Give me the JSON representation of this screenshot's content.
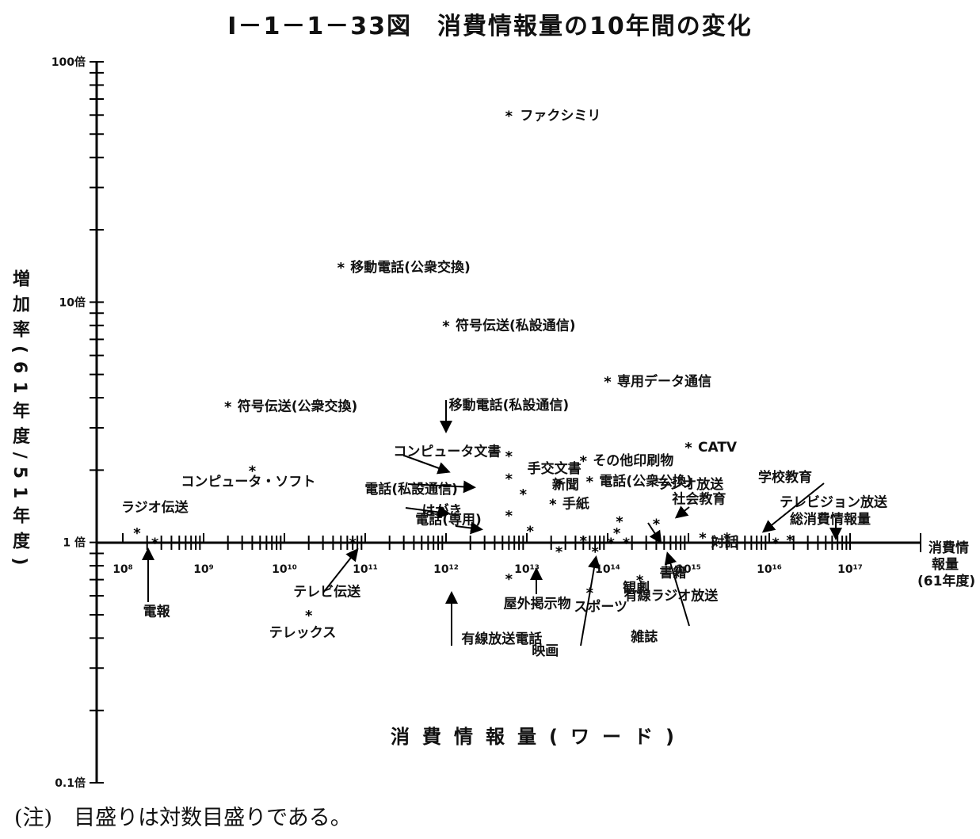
{
  "figure": {
    "title": "Ⅰ－1－1－33図　消費情報量の10年間の変化",
    "y_axis_label": "増加率(61年度/51年度)",
    "x_axis_label": "消費情報量(ワード)",
    "x_end_label_1": "消費情",
    "x_end_label_2": "報量",
    "x_end_label_3": "(61年度)",
    "note": "(注)　目盛りは対数目盛りである。"
  },
  "chart_data": {
    "type": "scatter",
    "x_scale": "log",
    "y_scale": "log",
    "xlim": [
      100000000,
      100000000000000000
    ],
    "ylim": [
      0.1,
      100
    ],
    "y_tick_labels": [
      {
        "value": 100,
        "label": "100倍"
      },
      {
        "value": 10,
        "label": "10倍"
      },
      {
        "value": 1,
        "label": "1 倍"
      },
      {
        "value": 0.1,
        "label": "0.1倍"
      }
    ],
    "x_tick_labels": [
      {
        "exp": 8,
        "label": "10⁸"
      },
      {
        "exp": 9,
        "label": "10⁹"
      },
      {
        "exp": 10,
        "label": "10¹⁰"
      },
      {
        "exp": 11,
        "label": "10¹¹"
      },
      {
        "exp": 12,
        "label": "10¹²"
      },
      {
        "exp": 13,
        "label": "10¹³"
      },
      {
        "exp": 14,
        "label": "10¹⁴"
      },
      {
        "exp": 15,
        "label": "10¹⁵"
      },
      {
        "exp": 16,
        "label": "10¹⁶"
      },
      {
        "exp": 17,
        "label": "10¹⁷"
      }
    ],
    "points": [
      {
        "name": "ファクシミリ",
        "x": 6000000000000,
        "y": 60
      },
      {
        "name": "移動電話(公衆交換)",
        "x": 50000000000,
        "y": 14
      },
      {
        "name": "符号伝送(私設通信)",
        "x": 1000000000000,
        "y": 8
      },
      {
        "name": "専用データ通信",
        "x": 100000000000000,
        "y": 4.7
      },
      {
        "name": "符号伝送(公衆交換)",
        "x": 2000000000,
        "y": 3.7
      },
      {
        "name": "移動電話(私設通信)",
        "x": 6000000000000,
        "y": 2.3
      },
      {
        "name": "CATV",
        "x": 1000000000000000,
        "y": 2.5
      },
      {
        "name": "コンピュータ文書",
        "x": 6000000000000,
        "y": 1.85
      },
      {
        "name": "コンピュータ・ソフト",
        "x": 4000000000,
        "y": 2.0
      },
      {
        "name": "その他印刷物",
        "x": 50000000000000,
        "y": 2.2
      },
      {
        "name": "手交文書",
        "x": 25000000000000,
        "y": 1.75
      },
      {
        "name": "電話(公衆公換)",
        "x": 60000000000000,
        "y": 1.8
      },
      {
        "name": "電話(私設通信)",
        "x": 9000000000000,
        "y": 1.6
      },
      {
        "name": "手紙",
        "x": 21000000000000,
        "y": 1.45
      },
      {
        "name": "はがき",
        "x": 6000000000000,
        "y": 1.3
      },
      {
        "name": "ラジオ伝送",
        "x": 150000000,
        "y": 1.1
      },
      {
        "name": "電話(専用)",
        "x": 11000000000000,
        "y": 1.12
      },
      {
        "name": "新聞",
        "x": 140000000000000,
        "y": 1.23
      },
      {
        "name": "ラジオ放送",
        "x": 130000000000000,
        "y": 1.1
      },
      {
        "name": "社会教育",
        "x": 400000000000000,
        "y": 1.2
      },
      {
        "name": "学校教育",
        "x": 1500000000000000,
        "y": 1.05
      },
      {
        "name": "テレビジョン放送",
        "x": 12000000000000000,
        "y": 1.0
      },
      {
        "name": "総消費情報量",
        "x": 18000000000000000,
        "y": 1.03
      },
      {
        "name": "対話",
        "x": 3000000000000000,
        "y": 1.05
      },
      {
        "name": "電報",
        "x": 250000000,
        "y": 1.0
      },
      {
        "name": "テレビ伝送",
        "x": 70000000000,
        "y": 1.0
      },
      {
        "name": "映画",
        "x": 50000000000000,
        "y": 1.02
      },
      {
        "name": "雑誌",
        "x": 110000000000000,
        "y": 1.0
      },
      {
        "name": "書籍",
        "x": 170000000000000,
        "y": 1.0
      },
      {
        "name": "屋外掲示物",
        "x": 25000000000000,
        "y": 0.92
      },
      {
        "name": "観劇",
        "x": 70000000000000,
        "y": 0.92
      },
      {
        "name": "有線放送電話",
        "x": 6000000000000,
        "y": 0.71
      },
      {
        "name": "スポーツ",
        "x": 60000000000000,
        "y": 0.62
      },
      {
        "name": "有線ラジオ放送",
        "x": 250000000000000,
        "y": 0.7
      },
      {
        "name": "テレックス",
        "x": 20000000000,
        "y": 0.5
      }
    ]
  }
}
